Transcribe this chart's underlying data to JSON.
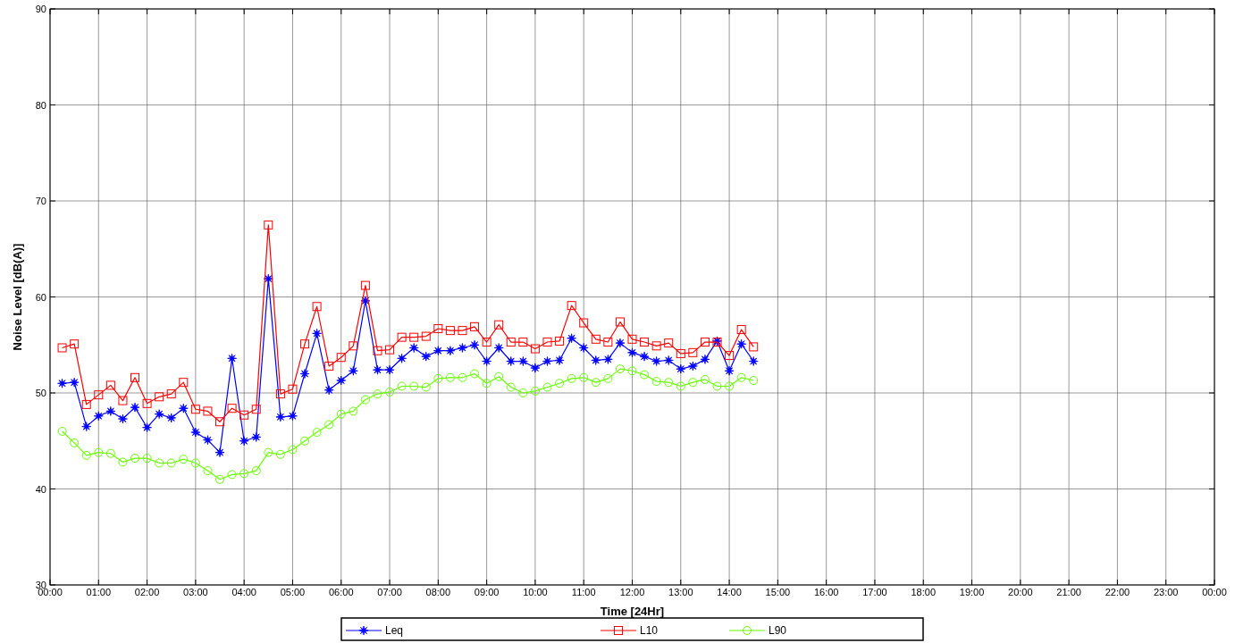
{
  "chart_data": {
    "type": "line",
    "xlabel": "Time [24Hr]",
    "ylabel": "Noise Level [dB(A)]",
    "x": [
      0.25,
      0.5,
      0.75,
      1,
      1.25,
      1.5,
      1.75,
      2,
      2.25,
      2.5,
      2.75,
      3,
      3.25,
      3.5,
      3.75,
      4,
      4.25,
      4.5,
      4.75,
      5,
      5.25,
      5.5,
      5.75,
      6,
      6.25,
      6.5,
      6.75,
      7,
      7.25,
      7.5,
      7.75,
      8,
      8.25,
      8.5,
      8.75,
      9,
      9.25,
      9.5,
      9.75,
      10,
      10.25,
      10.5,
      10.75,
      11,
      11.25,
      11.5,
      11.75,
      12,
      12.25,
      12.5,
      12.75,
      13,
      13.25,
      13.5,
      13.75,
      14,
      14.25,
      14.5
    ],
    "series": [
      {
        "name": "Leq",
        "color": "#0000ff",
        "marker": "star",
        "values": [
          51.0,
          51.1,
          46.5,
          47.6,
          48.1,
          47.3,
          48.5,
          46.4,
          47.8,
          47.4,
          48.4,
          45.9,
          45.1,
          43.8,
          53.6,
          45.0,
          45.4,
          61.9,
          47.5,
          47.6,
          52.0,
          56.2,
          50.3,
          51.3,
          52.3,
          59.6,
          52.4,
          52.4,
          53.6,
          54.7,
          53.8,
          54.4,
          54.4,
          54.7,
          55.0,
          53.3,
          54.7,
          53.3,
          53.3,
          52.6,
          53.3,
          53.4,
          55.7,
          54.7,
          53.4,
          53.5,
          55.2,
          54.2,
          53.8,
          53.3,
          53.4,
          52.5,
          52.8,
          53.5,
          55.4,
          52.3,
          55.1,
          53.3
        ]
      },
      {
        "name": "L10",
        "color": "#ff0000",
        "marker": "square",
        "values": [
          54.7,
          55.1,
          48.8,
          49.8,
          50.8,
          49.2,
          51.6,
          48.9,
          49.6,
          49.9,
          51.1,
          48.3,
          48.1,
          47.0,
          48.4,
          47.7,
          48.3,
          67.5,
          49.9,
          50.4,
          55.1,
          59.0,
          52.8,
          53.7,
          54.9,
          61.2,
          54.4,
          54.5,
          55.8,
          55.8,
          55.9,
          56.7,
          56.5,
          56.5,
          56.9,
          55.3,
          57.1,
          55.3,
          55.3,
          54.6,
          55.3,
          55.4,
          59.1,
          57.3,
          55.6,
          55.3,
          57.4,
          55.6,
          55.3,
          54.9,
          55.2,
          54.1,
          54.2,
          55.3,
          55.3,
          53.9,
          56.6,
          54.8
        ]
      },
      {
        "name": "L90",
        "color": "#66ff00",
        "marker": "circle",
        "values": [
          46.0,
          44.8,
          43.5,
          43.8,
          43.7,
          42.8,
          43.2,
          43.2,
          42.7,
          42.7,
          43.1,
          42.7,
          41.9,
          41.0,
          41.5,
          41.6,
          41.9,
          43.8,
          43.6,
          44.1,
          45.0,
          45.9,
          46.7,
          47.8,
          48.1,
          49.3,
          49.9,
          50.1,
          50.7,
          50.7,
          50.6,
          51.5,
          51.6,
          51.6,
          52.0,
          51.0,
          51.7,
          50.6,
          50.0,
          50.2,
          50.6,
          51.0,
          51.5,
          51.6,
          51.1,
          51.5,
          52.5,
          52.3,
          51.9,
          51.2,
          51.1,
          50.7,
          51.1,
          51.4,
          50.7,
          50.7,
          51.6,
          51.3
        ]
      }
    ],
    "xlim": [
      0,
      24
    ],
    "xticks": [
      {
        "value": 0,
        "label": "00:00"
      },
      {
        "value": 1,
        "label": "01:00"
      },
      {
        "value": 2,
        "label": "02:00"
      },
      {
        "value": 3,
        "label": "03:00"
      },
      {
        "value": 4,
        "label": "04:00"
      },
      {
        "value": 5,
        "label": "05:00"
      },
      {
        "value": 6,
        "label": "06:00"
      },
      {
        "value": 7,
        "label": "07:00"
      },
      {
        "value": 8,
        "label": "08:00"
      },
      {
        "value": 9,
        "label": "09:00"
      },
      {
        "value": 10,
        "label": "10:00"
      },
      {
        "value": 11,
        "label": "11:00"
      },
      {
        "value": 12,
        "label": "12:00"
      },
      {
        "value": 13,
        "label": "13:00"
      },
      {
        "value": 14,
        "label": "14:00"
      },
      {
        "value": 15,
        "label": "15:00"
      },
      {
        "value": 16,
        "label": "16:00"
      },
      {
        "value": 17,
        "label": "17:00"
      },
      {
        "value": 18,
        "label": "18:00"
      },
      {
        "value": 19,
        "label": "19:00"
      },
      {
        "value": 20,
        "label": "20:00"
      },
      {
        "value": 21,
        "label": "21:00"
      },
      {
        "value": 22,
        "label": "22:00"
      },
      {
        "value": 23,
        "label": "23:00"
      },
      {
        "value": 24,
        "label": "00:00"
      }
    ],
    "ylim": [
      30,
      90
    ],
    "yticks": [
      30,
      40,
      50,
      60,
      70,
      80,
      90
    ],
    "grid": true,
    "legend": "bottom",
    "line_style": "solid"
  }
}
